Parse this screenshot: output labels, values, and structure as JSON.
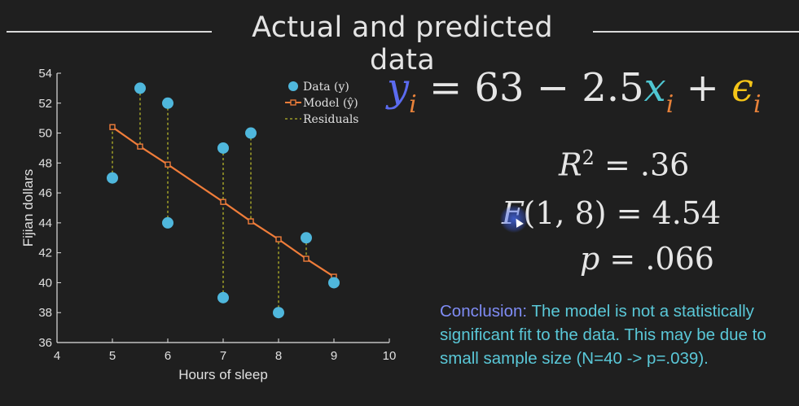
{
  "title": "Actual and predicted data",
  "equation": {
    "y": "y",
    "i1": "i",
    "eq_sign": "=",
    "intercept_part": "63 − 2.5",
    "x": "x",
    "i2": "i",
    "plus": "+",
    "eps": "ϵ",
    "i3": "i"
  },
  "stats": {
    "r2_lhs": "R",
    "r2_sup": "2",
    "r2_rhs": "= .36",
    "f_lhs": "F",
    "f_rhs": "(1, 8) = 4.54",
    "p_lhs": "p",
    "p_rhs": "= .066"
  },
  "conclusion": {
    "label": "Conclusion:",
    "text": " The model is not a statistically significant fit to the data. This may be due to small sample size (N=40 -> p=.039)."
  },
  "colors": {
    "data_points": "#4fb7dc",
    "model_line": "#f07d3a",
    "residuals": "#b5b52a",
    "axes": "#e0e0e0"
  },
  "chart_data": {
    "type": "scatter",
    "xlabel": "Hours of sleep",
    "ylabel": "Fijian dollars",
    "xlim": [
      4,
      10
    ],
    "ylim": [
      36,
      54
    ],
    "xticks": [
      4,
      5,
      6,
      7,
      8,
      9,
      10
    ],
    "yticks": [
      36,
      38,
      40,
      42,
      44,
      46,
      48,
      50,
      52,
      54
    ],
    "legend_position": "top-right",
    "legend": [
      "Data (y)",
      "Model (ŷ)",
      "Residuals"
    ],
    "series": [
      {
        "name": "Data (y)",
        "x": [
          5,
          5.5,
          6,
          6,
          7,
          7,
          7.5,
          8,
          8.5,
          9
        ],
        "y": [
          47,
          53,
          52,
          44,
          49,
          39,
          50,
          38,
          43,
          40
        ]
      },
      {
        "name": "Model (ŷ)",
        "x": [
          5,
          5.5,
          6,
          7,
          7.5,
          8,
          8.5,
          9
        ],
        "y": [
          50.4,
          49.1,
          47.9,
          45.4,
          44.1,
          42.9,
          41.6,
          40.4
        ]
      }
    ]
  }
}
